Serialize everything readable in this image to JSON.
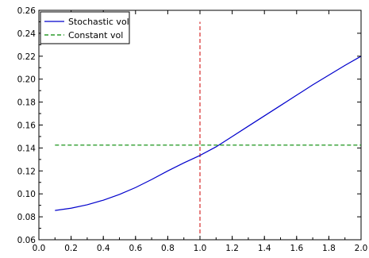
{
  "chart_data": {
    "type": "line",
    "title": "",
    "xlabel": "",
    "ylabel": "",
    "xlim": [
      0.0,
      2.0
    ],
    "ylim": [
      0.06,
      0.26
    ],
    "xticks": [
      0.0,
      0.2,
      0.4,
      0.6,
      0.8,
      1.0,
      1.2,
      1.4,
      1.6,
      1.8,
      2.0
    ],
    "yticks": [
      0.06,
      0.08,
      0.1,
      0.12,
      0.14,
      0.16,
      0.18,
      0.2,
      0.22,
      0.24,
      0.26
    ],
    "xtick_labels": [
      "0.0",
      "0.2",
      "0.4",
      "0.6",
      "0.8",
      "1.0",
      "1.2",
      "1.4",
      "1.6",
      "1.8",
      "2.0"
    ],
    "ytick_labels": [
      "0.06",
      "0.08",
      "0.10",
      "0.12",
      "0.14",
      "0.16",
      "0.18",
      "0.20",
      "0.22",
      "0.24",
      "0.26"
    ],
    "grid": false,
    "legend_position": "top-left",
    "series": [
      {
        "name": "Stochastic vol",
        "color": "#0000cc",
        "style": "solid",
        "x": [
          0.1,
          0.2,
          0.3,
          0.4,
          0.5,
          0.6,
          0.7,
          0.8,
          0.9,
          1.0,
          1.1,
          1.2,
          1.3,
          1.4,
          1.5,
          1.6,
          1.7,
          1.8,
          1.9,
          2.0
        ],
        "y": [
          0.0855,
          0.0875,
          0.0905,
          0.0945,
          0.0995,
          0.1055,
          0.1125,
          0.12,
          0.127,
          0.1335,
          0.141,
          0.15,
          0.159,
          0.168,
          0.177,
          0.186,
          0.195,
          0.2035,
          0.212,
          0.22
        ]
      },
      {
        "name": "Constant vol",
        "color": "#008800",
        "style": "dashed",
        "x": [
          0.1,
          2.0
        ],
        "y": [
          0.1425,
          0.1425
        ]
      }
    ],
    "vlines": [
      {
        "x": 1.0,
        "y_range": [
          0.06,
          0.25
        ],
        "color": "#cc0000",
        "style": "dashed"
      }
    ]
  }
}
